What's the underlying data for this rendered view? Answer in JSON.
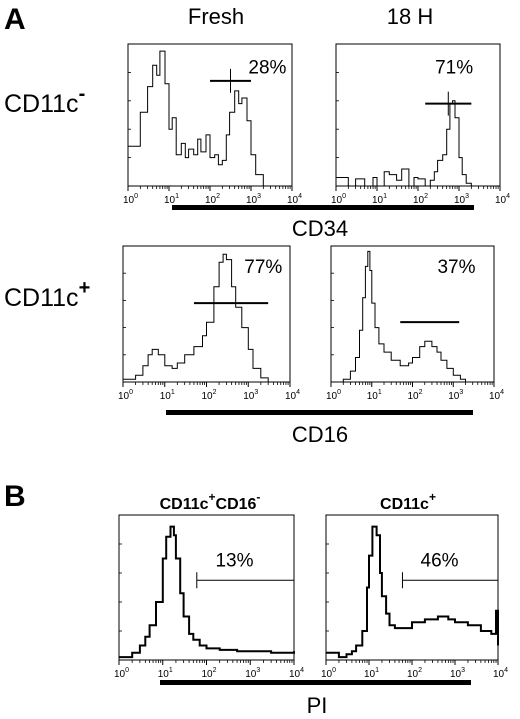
{
  "panel_labels": {
    "a": "A",
    "b": "B"
  },
  "columns": {
    "fresh": "Fresh",
    "h18": "18 H"
  },
  "rows": {
    "cd11c_neg": {
      "base": "CD11c",
      "sup": "-"
    },
    "cd11c_pos": {
      "base": "CD11c",
      "sup": "+"
    }
  },
  "axis_labels": {
    "cd34": "CD34",
    "cd16": "CD16",
    "pi": "PI"
  },
  "tick_labels": [
    {
      "base": "10",
      "exp": "0"
    },
    {
      "base": "10",
      "exp": "1"
    },
    {
      "base": "10",
      "exp": "2"
    },
    {
      "base": "10",
      "exp": "3"
    },
    {
      "base": "10",
      "exp": "4"
    }
  ],
  "panel_b_titles": {
    "left": {
      "parts": [
        {
          "t": "CD11c",
          "s": "+"
        },
        {
          "t": "CD16",
          "s": "-"
        }
      ]
    },
    "right": {
      "parts": [
        {
          "t": "CD11c",
          "s": "+"
        }
      ]
    }
  },
  "chart_data": [
    {
      "type": "area",
      "panel": "A",
      "column": "Fresh",
      "row": "CD11c-",
      "marker": "CD34",
      "xscale": "log",
      "xlim": [
        1,
        10000
      ],
      "gate_percent": "28%",
      "gate_range": [
        100,
        1000
      ],
      "x": [
        1,
        2,
        3,
        4,
        5,
        6,
        8,
        10,
        12,
        15,
        20,
        25,
        30,
        40,
        50,
        60,
        80,
        100,
        130,
        160,
        200,
        250,
        300,
        400,
        500,
        600,
        800,
        1000,
        1300,
        2000
      ],
      "y": [
        0.28,
        0.52,
        0.7,
        0.85,
        0.78,
        0.95,
        0.72,
        0.4,
        0.48,
        0.22,
        0.3,
        0.2,
        0.26,
        0.22,
        0.33,
        0.24,
        0.36,
        0.2,
        0.22,
        0.15,
        0.18,
        0.36,
        0.52,
        0.67,
        0.58,
        0.62,
        0.46,
        0.22,
        0.08,
        0.0
      ]
    },
    {
      "type": "area",
      "panel": "A",
      "column": "18 H",
      "row": "CD11c-",
      "marker": "CD34",
      "xscale": "log",
      "xlim": [
        1,
        10000
      ],
      "gate_percent": "71%",
      "gate_range": [
        150,
        2000
      ],
      "x": [
        1,
        2,
        3,
        5,
        8,
        10,
        15,
        20,
        30,
        40,
        60,
        80,
        100,
        150,
        200,
        250,
        300,
        400,
        500,
        600,
        700,
        800,
        1000,
        1200,
        1500,
        2000
      ],
      "y": [
        0.06,
        0.0,
        0.05,
        0.0,
        0.06,
        0.0,
        0.1,
        0.08,
        0.04,
        0.12,
        0.0,
        0.06,
        0.05,
        0.0,
        0.04,
        0.1,
        0.18,
        0.22,
        0.4,
        0.58,
        0.6,
        0.48,
        0.2,
        0.08,
        0.02,
        0.0
      ]
    },
    {
      "type": "area",
      "panel": "A",
      "column": "Fresh",
      "row": "CD11c+",
      "marker": "CD16",
      "xscale": "log",
      "xlim": [
        1,
        10000
      ],
      "gate_percent": "77%",
      "gate_range": [
        50,
        3000
      ],
      "x": [
        1,
        2,
        3,
        4,
        5,
        7,
        10,
        15,
        20,
        30,
        50,
        80,
        100,
        150,
        200,
        250,
        300,
        400,
        500,
        700,
        1000,
        1300,
        2000,
        3000
      ],
      "y": [
        0.02,
        0.05,
        0.12,
        0.2,
        0.24,
        0.2,
        0.12,
        0.1,
        0.14,
        0.2,
        0.26,
        0.34,
        0.44,
        0.7,
        0.88,
        0.94,
        0.9,
        0.7,
        0.55,
        0.4,
        0.24,
        0.1,
        0.03,
        0.0
      ]
    },
    {
      "type": "area",
      "panel": "A",
      "column": "18 H",
      "row": "CD11c+",
      "marker": "CD16",
      "xscale": "log",
      "xlim": [
        1,
        10000
      ],
      "gate_percent": "37%",
      "gate_range": [
        50,
        1400
      ],
      "x": [
        1,
        2,
        3,
        4,
        5,
        6,
        7,
        8,
        9,
        10,
        12,
        15,
        20,
        30,
        50,
        80,
        100,
        150,
        200,
        300,
        400,
        500,
        700,
        1000,
        1500,
        2000
      ],
      "y": [
        0.0,
        0.02,
        0.08,
        0.18,
        0.38,
        0.62,
        0.85,
        0.96,
        0.82,
        0.58,
        0.4,
        0.28,
        0.22,
        0.16,
        0.12,
        0.14,
        0.18,
        0.26,
        0.3,
        0.26,
        0.22,
        0.16,
        0.1,
        0.05,
        0.02,
        0.0
      ]
    },
    {
      "type": "area",
      "panel": "B",
      "gate": "CD11c+CD16-",
      "marker": "PI",
      "xscale": "log",
      "xlim": [
        1,
        10000
      ],
      "gate_percent": "13%",
      "gate_range": [
        60,
        10000
      ],
      "x": [
        1,
        2,
        3,
        4,
        5,
        7,
        10,
        12,
        15,
        18,
        20,
        25,
        30,
        40,
        50,
        70,
        100,
        200,
        500,
        1000,
        3000,
        6000,
        10000
      ],
      "y": [
        0.02,
        0.05,
        0.1,
        0.16,
        0.24,
        0.4,
        0.7,
        0.85,
        0.92,
        0.86,
        0.7,
        0.46,
        0.3,
        0.18,
        0.14,
        0.1,
        0.08,
        0.07,
        0.06,
        0.06,
        0.05,
        0.05,
        0.06
      ]
    },
    {
      "type": "area",
      "panel": "B",
      "gate": "CD11c+",
      "marker": "PI",
      "xscale": "log",
      "xlim": [
        1,
        10000
      ],
      "gate_percent": "46%",
      "gate_range": [
        60,
        10000
      ],
      "x": [
        1,
        2,
        3,
        4,
        5,
        7,
        9,
        10,
        12,
        15,
        18,
        20,
        25,
        30,
        40,
        60,
        100,
        200,
        400,
        700,
        1000,
        2000,
        4000,
        7000,
        9000,
        10000
      ],
      "y": [
        0.05,
        0.02,
        0.04,
        0.06,
        0.1,
        0.2,
        0.5,
        0.72,
        0.92,
        0.86,
        0.6,
        0.44,
        0.32,
        0.24,
        0.22,
        0.22,
        0.26,
        0.28,
        0.3,
        0.28,
        0.26,
        0.24,
        0.2,
        0.18,
        0.34,
        0.1
      ]
    }
  ]
}
